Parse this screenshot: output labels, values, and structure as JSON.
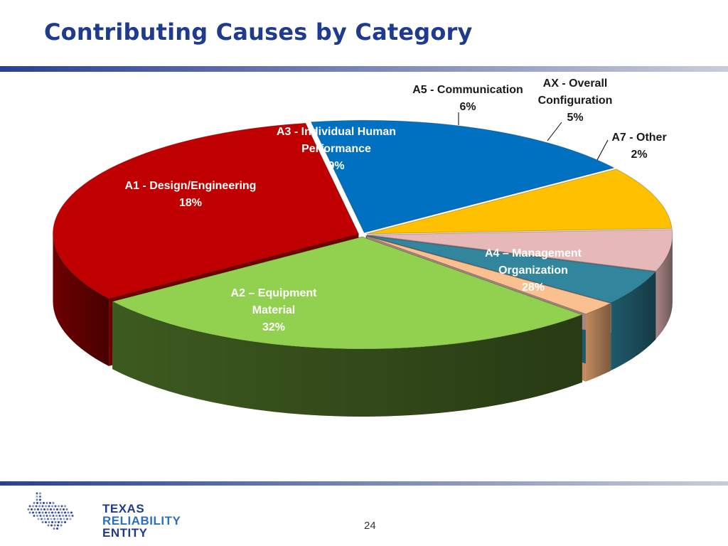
{
  "slide": {
    "title": "Contributing Causes by Category",
    "page_number": "24"
  },
  "logo": {
    "line1": "TEXAS",
    "line2": "RELIABILITY",
    "line3": "ENTITY",
    "colors": {
      "navy": "#1f3b8f",
      "blue": "#2a6fc0",
      "dots": "#1f3b8f"
    }
  },
  "chart_data": {
    "type": "pie",
    "style": "3d-exploded",
    "title": "",
    "slices": [
      {
        "name": "A1 - Design/Engineering",
        "value": 18,
        "label": "18%",
        "color": "#0070c0",
        "side": "#004d85"
      },
      {
        "name": "A3 - Individual Human Performance",
        "value": 9,
        "label": "9%",
        "color": "#ffc000",
        "side": "#b38600"
      },
      {
        "name": "A5 - Communication",
        "value": 6,
        "label": "6%",
        "color": "#e6b8b7",
        "side": "#a78584"
      },
      {
        "name": "AX - Overall Configuration",
        "value": 5,
        "label": "5%",
        "color": "#31859c",
        "side": "#1f5a6a"
      },
      {
        "name": "A7 - Other",
        "value": 2,
        "label": "2%",
        "color": "#fac090",
        "side": "#c08a5e"
      },
      {
        "name": "A4 – Management Organization",
        "value": 28,
        "label": "28%",
        "color": "#92d050",
        "side": "#3d5a1f"
      },
      {
        "name": "A2 – Equipment Material",
        "value": 32,
        "label": "32%",
        "color": "#c00000",
        "side": "#6e0000"
      }
    ],
    "label_lines": [
      [
        "A1 - Design/Engineering",
        "18%"
      ],
      [
        "A3 - Individual Human",
        "Performance",
        "9%"
      ],
      [
        "A5 - Communication",
        "6%"
      ],
      [
        "AX - Overall",
        "Configuration",
        "5%"
      ],
      [
        "A7 - Other",
        "2%"
      ],
      [
        "A4 – Management",
        "Organization",
        "28%"
      ],
      [
        "A2 – Equipment",
        "Material",
        "32%"
      ]
    ],
    "legend": "none"
  }
}
